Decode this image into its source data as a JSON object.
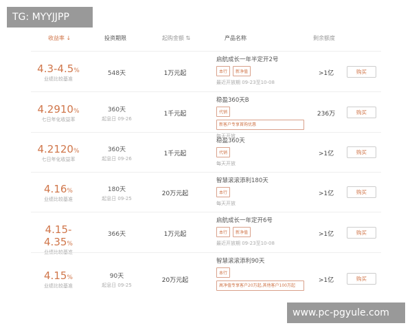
{
  "header": {
    "rate": "收益率 ↓",
    "term": "投资期限",
    "amount": "起购金额 ⇅",
    "product": "产品名称",
    "remaining": "剩余额度"
  },
  "rows": [
    {
      "rate": "4.3-4.5",
      "pct": "%",
      "rate_label": "业绩比较基准",
      "term": "548天",
      "term_sub": "",
      "amount": "1万元起",
      "name": "启航成长一年半定开2号",
      "tags": [
        "本行",
        "新净值"
      ],
      "note": "最近开放期 09-23至10-08",
      "remaining": ">1亿",
      "buy": "购买"
    },
    {
      "rate": "4.2910",
      "pct": "%",
      "rate_label": "七日年化收益率",
      "term": "360天",
      "term_sub": "起息日 09-26",
      "amount": "1千元起",
      "name": "稳盈360天B",
      "tags": [
        "代销",
        "新客户专享首购优惠"
      ],
      "note": "每天开放",
      "remaining": "236万",
      "buy": "购买"
    },
    {
      "rate": "4.2120",
      "pct": "%",
      "rate_label": "七日年化收益率",
      "term": "360天",
      "term_sub": "起息日 09-26",
      "amount": "1千元起",
      "name": "稳盈360天",
      "tags": [
        "代销"
      ],
      "note": "每天开放",
      "remaining": ">1亿",
      "buy": "购买"
    },
    {
      "rate": "4.16",
      "pct": "%",
      "rate_label": "业绩比较基准",
      "term": "180天",
      "term_sub": "起息日 09-25",
      "amount": "20万元起",
      "name": "智慧滚滚添利180天",
      "tags": [
        "本行"
      ],
      "note": "每天开放",
      "remaining": ">1亿",
      "buy": "购买"
    },
    {
      "rate": "4.15-4.35",
      "pct": "%",
      "rate_label": "业绩比较基准",
      "term": "366天",
      "term_sub": "",
      "amount": "1万元起",
      "name": "启航成长一年定开6号",
      "tags": [
        "本行",
        "新净值"
      ],
      "note": "最近开放期 09-23至10-08",
      "remaining": ">1亿",
      "buy": "购买"
    },
    {
      "rate": "4.15",
      "pct": "%",
      "rate_label": "业绩比较基准",
      "term": "90天",
      "term_sub": "起息日 09-25",
      "amount": "20万元起",
      "name": "智慧滚滚添利90天",
      "tags": [
        "本行",
        "高净值专享客户20万起,其他客户100万起"
      ],
      "note": "",
      "remaining": ">1亿",
      "buy": "购买"
    }
  ],
  "watermarks": {
    "top": "TG: MYYJJPP",
    "bottom": "www.pc-pgyule.com"
  },
  "colors": {
    "accent": "#d0764a"
  }
}
